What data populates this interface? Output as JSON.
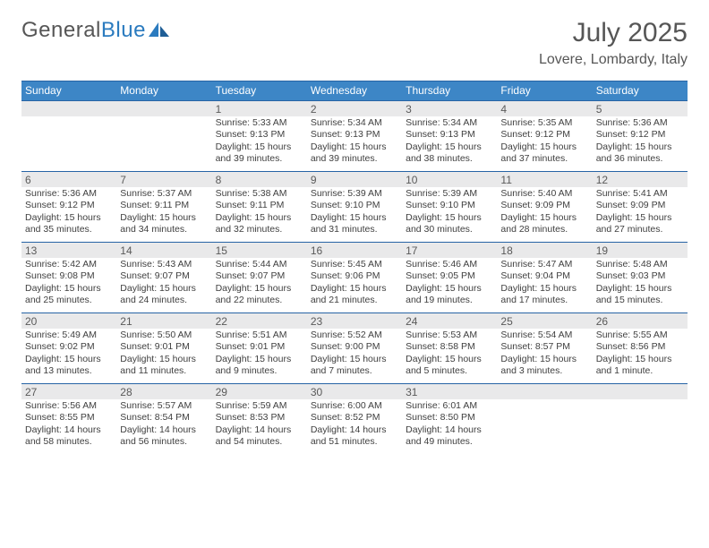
{
  "brand": {
    "part1": "General",
    "part2": "Blue"
  },
  "title": "July 2025",
  "location": "Lovere, Lombardy, Italy",
  "colors": {
    "header_bg": "#3d86c6",
    "border": "#2764a5",
    "daynum_bg": "#e9e9ea",
    "text_muted": "#565656",
    "text_body": "#404040"
  },
  "typography": {
    "month_title_fontsize": 30,
    "location_fontsize": 16,
    "dow_fontsize": 12,
    "daynum_fontsize": 12,
    "body_fontsize": 10.5
  },
  "days_of_week": [
    "Sunday",
    "Monday",
    "Tuesday",
    "Wednesday",
    "Thursday",
    "Friday",
    "Saturday"
  ],
  "weeks": [
    [
      null,
      null,
      {
        "n": "1",
        "sunrise": "Sunrise: 5:33 AM",
        "sunset": "Sunset: 9:13 PM",
        "day1": "Daylight: 15 hours",
        "day2": "and 39 minutes."
      },
      {
        "n": "2",
        "sunrise": "Sunrise: 5:34 AM",
        "sunset": "Sunset: 9:13 PM",
        "day1": "Daylight: 15 hours",
        "day2": "and 39 minutes."
      },
      {
        "n": "3",
        "sunrise": "Sunrise: 5:34 AM",
        "sunset": "Sunset: 9:13 PM",
        "day1": "Daylight: 15 hours",
        "day2": "and 38 minutes."
      },
      {
        "n": "4",
        "sunrise": "Sunrise: 5:35 AM",
        "sunset": "Sunset: 9:12 PM",
        "day1": "Daylight: 15 hours",
        "day2": "and 37 minutes."
      },
      {
        "n": "5",
        "sunrise": "Sunrise: 5:36 AM",
        "sunset": "Sunset: 9:12 PM",
        "day1": "Daylight: 15 hours",
        "day2": "and 36 minutes."
      }
    ],
    [
      {
        "n": "6",
        "sunrise": "Sunrise: 5:36 AM",
        "sunset": "Sunset: 9:12 PM",
        "day1": "Daylight: 15 hours",
        "day2": "and 35 minutes."
      },
      {
        "n": "7",
        "sunrise": "Sunrise: 5:37 AM",
        "sunset": "Sunset: 9:11 PM",
        "day1": "Daylight: 15 hours",
        "day2": "and 34 minutes."
      },
      {
        "n": "8",
        "sunrise": "Sunrise: 5:38 AM",
        "sunset": "Sunset: 9:11 PM",
        "day1": "Daylight: 15 hours",
        "day2": "and 32 minutes."
      },
      {
        "n": "9",
        "sunrise": "Sunrise: 5:39 AM",
        "sunset": "Sunset: 9:10 PM",
        "day1": "Daylight: 15 hours",
        "day2": "and 31 minutes."
      },
      {
        "n": "10",
        "sunrise": "Sunrise: 5:39 AM",
        "sunset": "Sunset: 9:10 PM",
        "day1": "Daylight: 15 hours",
        "day2": "and 30 minutes."
      },
      {
        "n": "11",
        "sunrise": "Sunrise: 5:40 AM",
        "sunset": "Sunset: 9:09 PM",
        "day1": "Daylight: 15 hours",
        "day2": "and 28 minutes."
      },
      {
        "n": "12",
        "sunrise": "Sunrise: 5:41 AM",
        "sunset": "Sunset: 9:09 PM",
        "day1": "Daylight: 15 hours",
        "day2": "and 27 minutes."
      }
    ],
    [
      {
        "n": "13",
        "sunrise": "Sunrise: 5:42 AM",
        "sunset": "Sunset: 9:08 PM",
        "day1": "Daylight: 15 hours",
        "day2": "and 25 minutes."
      },
      {
        "n": "14",
        "sunrise": "Sunrise: 5:43 AM",
        "sunset": "Sunset: 9:07 PM",
        "day1": "Daylight: 15 hours",
        "day2": "and 24 minutes."
      },
      {
        "n": "15",
        "sunrise": "Sunrise: 5:44 AM",
        "sunset": "Sunset: 9:07 PM",
        "day1": "Daylight: 15 hours",
        "day2": "and 22 minutes."
      },
      {
        "n": "16",
        "sunrise": "Sunrise: 5:45 AM",
        "sunset": "Sunset: 9:06 PM",
        "day1": "Daylight: 15 hours",
        "day2": "and 21 minutes."
      },
      {
        "n": "17",
        "sunrise": "Sunrise: 5:46 AM",
        "sunset": "Sunset: 9:05 PM",
        "day1": "Daylight: 15 hours",
        "day2": "and 19 minutes."
      },
      {
        "n": "18",
        "sunrise": "Sunrise: 5:47 AM",
        "sunset": "Sunset: 9:04 PM",
        "day1": "Daylight: 15 hours",
        "day2": "and 17 minutes."
      },
      {
        "n": "19",
        "sunrise": "Sunrise: 5:48 AM",
        "sunset": "Sunset: 9:03 PM",
        "day1": "Daylight: 15 hours",
        "day2": "and 15 minutes."
      }
    ],
    [
      {
        "n": "20",
        "sunrise": "Sunrise: 5:49 AM",
        "sunset": "Sunset: 9:02 PM",
        "day1": "Daylight: 15 hours",
        "day2": "and 13 minutes."
      },
      {
        "n": "21",
        "sunrise": "Sunrise: 5:50 AM",
        "sunset": "Sunset: 9:01 PM",
        "day1": "Daylight: 15 hours",
        "day2": "and 11 minutes."
      },
      {
        "n": "22",
        "sunrise": "Sunrise: 5:51 AM",
        "sunset": "Sunset: 9:01 PM",
        "day1": "Daylight: 15 hours",
        "day2": "and 9 minutes."
      },
      {
        "n": "23",
        "sunrise": "Sunrise: 5:52 AM",
        "sunset": "Sunset: 9:00 PM",
        "day1": "Daylight: 15 hours",
        "day2": "and 7 minutes."
      },
      {
        "n": "24",
        "sunrise": "Sunrise: 5:53 AM",
        "sunset": "Sunset: 8:58 PM",
        "day1": "Daylight: 15 hours",
        "day2": "and 5 minutes."
      },
      {
        "n": "25",
        "sunrise": "Sunrise: 5:54 AM",
        "sunset": "Sunset: 8:57 PM",
        "day1": "Daylight: 15 hours",
        "day2": "and 3 minutes."
      },
      {
        "n": "26",
        "sunrise": "Sunrise: 5:55 AM",
        "sunset": "Sunset: 8:56 PM",
        "day1": "Daylight: 15 hours",
        "day2": "and 1 minute."
      }
    ],
    [
      {
        "n": "27",
        "sunrise": "Sunrise: 5:56 AM",
        "sunset": "Sunset: 8:55 PM",
        "day1": "Daylight: 14 hours",
        "day2": "and 58 minutes."
      },
      {
        "n": "28",
        "sunrise": "Sunrise: 5:57 AM",
        "sunset": "Sunset: 8:54 PM",
        "day1": "Daylight: 14 hours",
        "day2": "and 56 minutes."
      },
      {
        "n": "29",
        "sunrise": "Sunrise: 5:59 AM",
        "sunset": "Sunset: 8:53 PM",
        "day1": "Daylight: 14 hours",
        "day2": "and 54 minutes."
      },
      {
        "n": "30",
        "sunrise": "Sunrise: 6:00 AM",
        "sunset": "Sunset: 8:52 PM",
        "day1": "Daylight: 14 hours",
        "day2": "and 51 minutes."
      },
      {
        "n": "31",
        "sunrise": "Sunrise: 6:01 AM",
        "sunset": "Sunset: 8:50 PM",
        "day1": "Daylight: 14 hours",
        "day2": "and 49 minutes."
      },
      null,
      null
    ]
  ]
}
